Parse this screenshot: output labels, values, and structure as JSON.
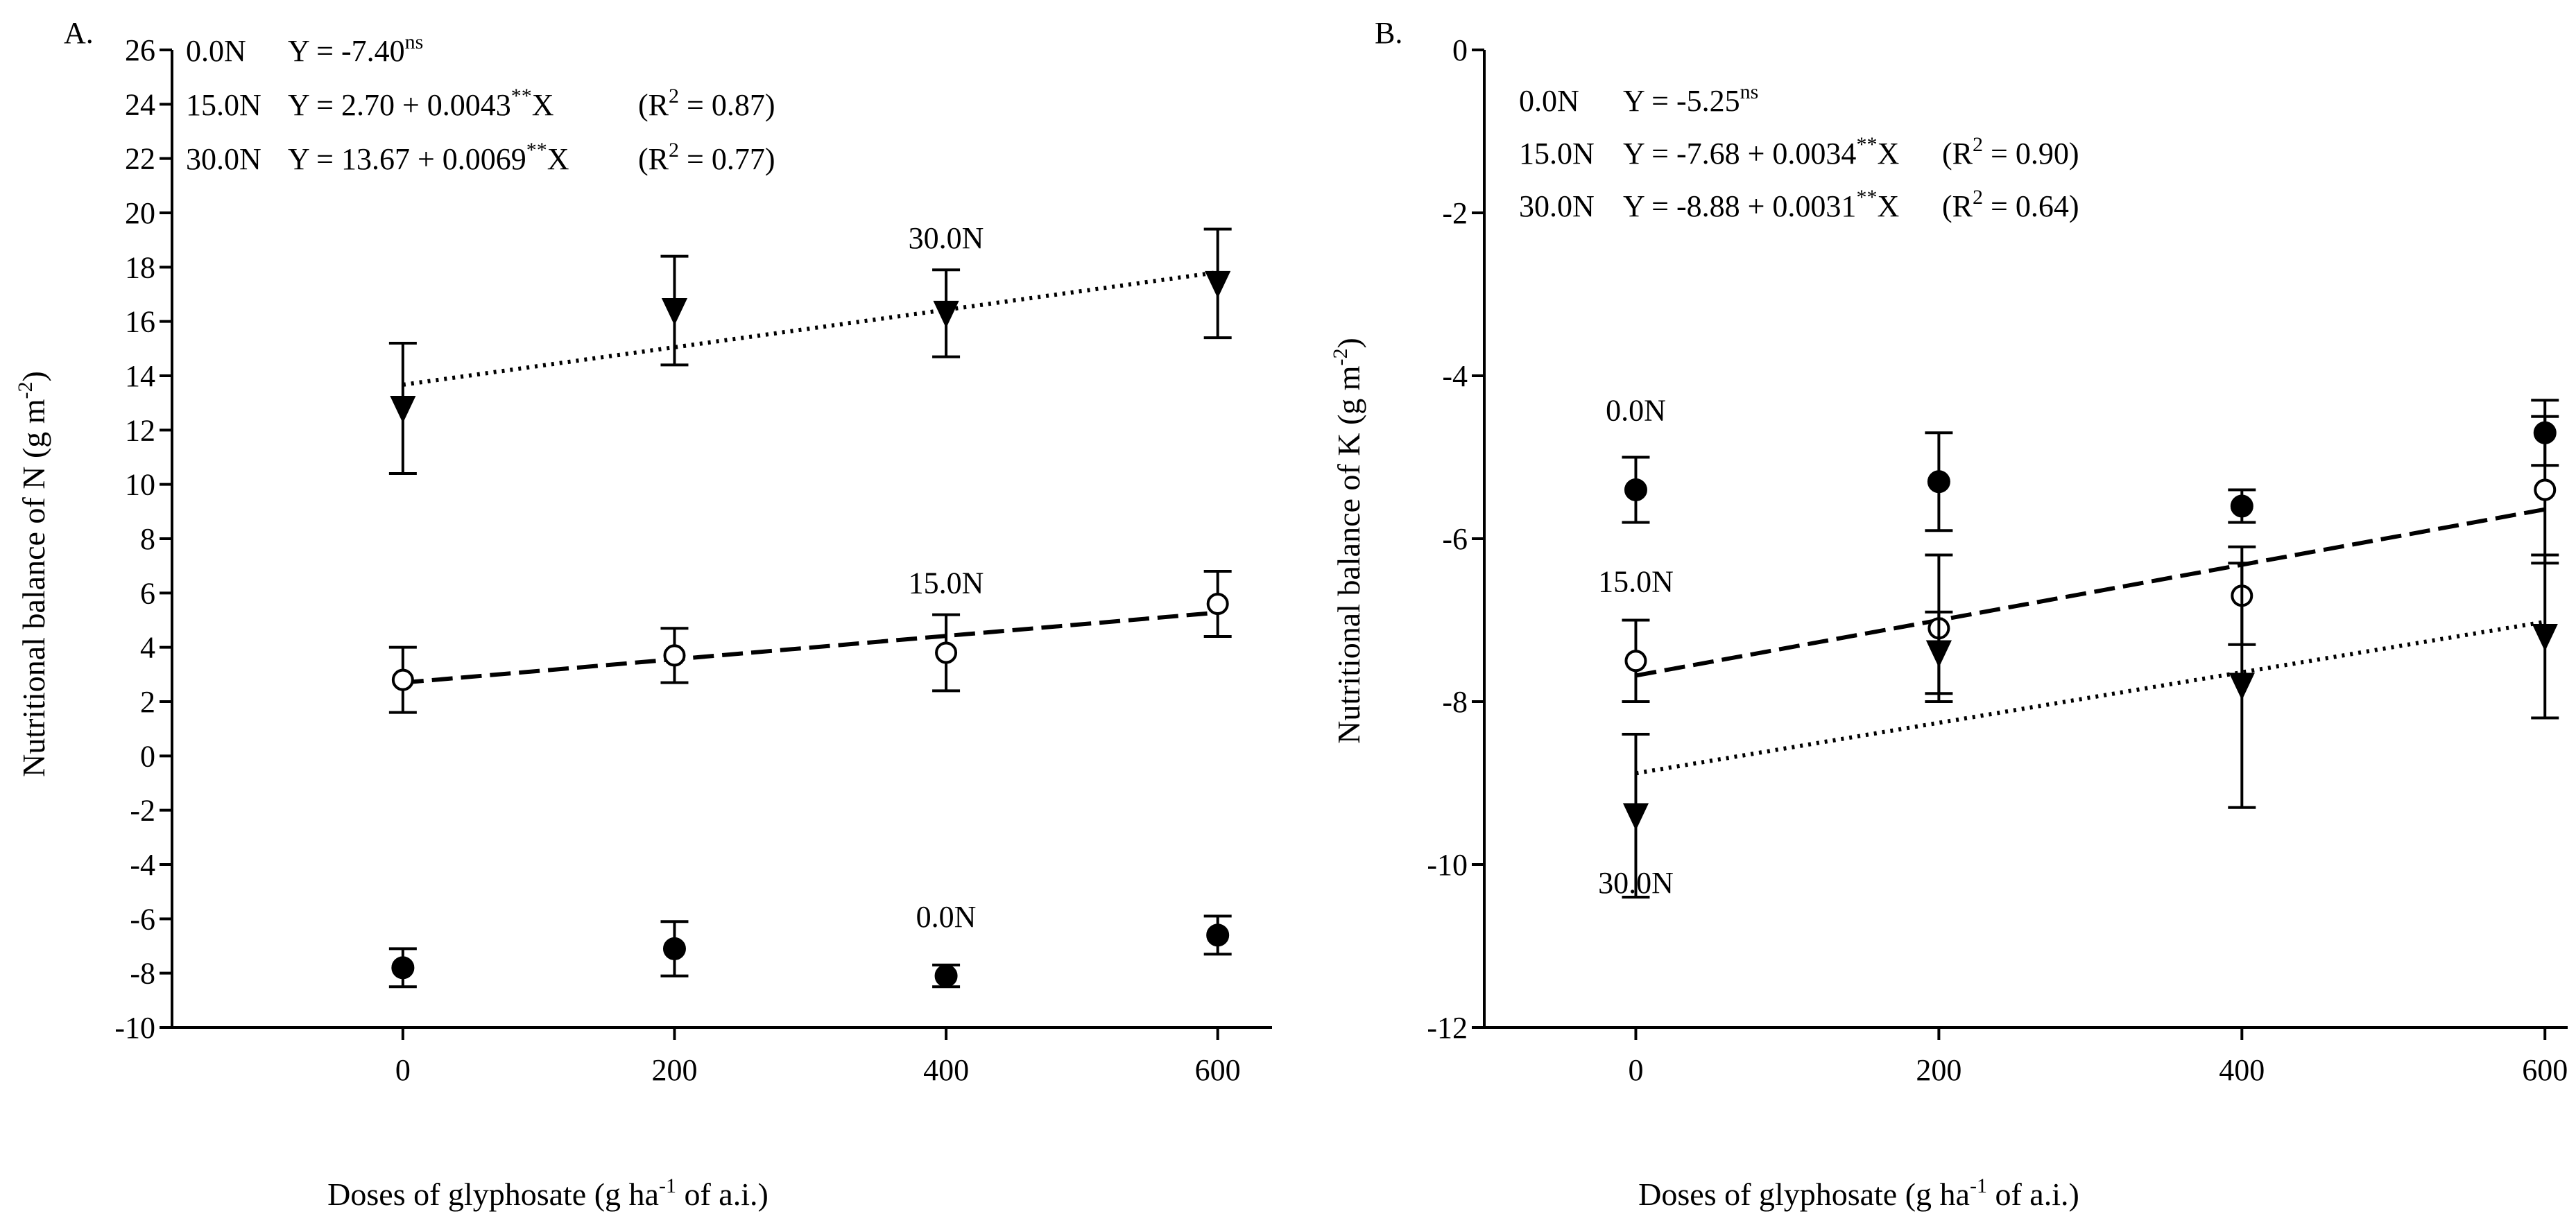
{
  "xlabel_main": "Doses of glyphosate (g ha",
  "xlabel_sup": "-1",
  "xlabel_tail": " of a.i.)",
  "panels": [
    {
      "letter": "A.",
      "ylabel_main": "Nutritional balance of N (g m",
      "ylabel_sup": "-2",
      "ylabel_tail": ")",
      "equations": [
        {
          "label": "0.0N",
          "pre": "Y = -7.40",
          "sup": "ns",
          "post": "",
          "r2_pre": "",
          "r2_sup": "",
          "r2_post": ""
        },
        {
          "label": "15.0N",
          "pre": "Y = 2.70 + 0.0043",
          "sup": "**",
          "post": "X",
          "r2_pre": "(R",
          "r2_sup": "2",
          "r2_post": " = 0.87)"
        },
        {
          "label": "30.0N",
          "pre": "Y = 13.67 + 0.0069",
          "sup": "**",
          "post": "X",
          "r2_pre": "(R",
          "r2_sup": "2",
          "r2_post": " = 0.77)"
        }
      ]
    },
    {
      "letter": "B.",
      "ylabel_main": "Nutritional balance of K (g m",
      "ylabel_sup": "-2",
      "ylabel_tail": ")",
      "equations": [
        {
          "label": "0.0N",
          "pre": "Y = -5.25",
          "sup": "ns",
          "post": "",
          "r2_pre": "",
          "r2_sup": "",
          "r2_post": ""
        },
        {
          "label": "15.0N",
          "pre": "Y = -7.68 + 0.0034",
          "sup": "**",
          "post": "X",
          "r2_pre": "(R",
          "r2_sup": "2",
          "r2_post": " = 0.90)"
        },
        {
          "label": "30.0N",
          "pre": "Y = -8.88 + 0.0031",
          "sup": "**",
          "post": "X",
          "r2_pre": "(R",
          "r2_sup": "2",
          "r2_post": " = 0.64)"
        }
      ]
    }
  ],
  "colors": {
    "ink": "#000000",
    "open_fill": "#ffffff"
  },
  "chart_data": [
    {
      "type": "scatter",
      "title": "",
      "xlabel": "Doses of glyphosate (g ha-1 of a.i.)",
      "ylabel": "Nutritional balance of N (g m-2)",
      "x": [
        0,
        200,
        400,
        600
      ],
      "xticks": [
        0,
        200,
        400,
        600
      ],
      "xlim": [
        -170,
        640
      ],
      "ylim": [
        -10,
        26
      ],
      "yticks": [
        -10,
        -8,
        -6,
        -4,
        -2,
        0,
        2,
        4,
        6,
        8,
        10,
        12,
        14,
        16,
        18,
        20,
        22,
        24,
        26
      ],
      "grid": false,
      "series": [
        {
          "name": "0.0N",
          "marker": "filled-circle",
          "values": [
            -7.8,
            -7.1,
            -8.1,
            -6.6
          ],
          "err_low": [
            0.7,
            1.0,
            0.4,
            0.7
          ],
          "err_high": [
            0.7,
            1.0,
            0.4,
            0.7
          ],
          "trend": null,
          "label": "0.0N",
          "label_at": [
            400,
            -6.3
          ]
        },
        {
          "name": "15.0N",
          "marker": "open-circle",
          "values": [
            2.8,
            3.7,
            3.8,
            5.6
          ],
          "err_low": [
            1.2,
            1.0,
            1.4,
            1.2
          ],
          "err_high": [
            1.2,
            1.0,
            1.4,
            1.2
          ],
          "trend": {
            "intercept": 2.7,
            "slope": 0.0043,
            "style": "dashed"
          },
          "label": "15.0N",
          "label_at": [
            400,
            6.0
          ]
        },
        {
          "name": "30.0N",
          "marker": "filled-triangle-down",
          "values": [
            12.8,
            16.4,
            16.3,
            17.4
          ],
          "err_low": [
            2.4,
            2.0,
            1.6,
            2.0
          ],
          "err_high": [
            2.4,
            2.0,
            1.6,
            2.0
          ],
          "trend": {
            "intercept": 13.67,
            "slope": 0.0069,
            "style": "dotted"
          },
          "label": "30.0N",
          "label_at": [
            400,
            18.7
          ]
        }
      ]
    },
    {
      "type": "scatter",
      "title": "",
      "xlabel": "Doses of glyphosate (g ha-1 of a.i.)",
      "ylabel": "Nutritional balance of K (g m-2)",
      "x": [
        0,
        200,
        400,
        600
      ],
      "xticks": [
        0,
        200,
        400,
        600
      ],
      "xlim": [
        -100,
        615
      ],
      "ylim": [
        -12,
        0
      ],
      "yticks": [
        -12,
        -10,
        -8,
        -6,
        -4,
        -2,
        0
      ],
      "grid": false,
      "series": [
        {
          "name": "0.0N",
          "marker": "filled-circle",
          "values": [
            -5.4,
            -5.3,
            -5.6,
            -4.7
          ],
          "err_low": [
            0.4,
            0.6,
            0.2,
            0.4
          ],
          "err_high": [
            0.4,
            0.6,
            0.2,
            0.4
          ],
          "trend": null,
          "label": "0.0N",
          "label_at": [
            0,
            -4.55
          ]
        },
        {
          "name": "15.0N",
          "marker": "open-circle",
          "values": [
            -7.5,
            -7.1,
            -6.7,
            -5.4
          ],
          "err_low": [
            0.5,
            0.9,
            0.6,
            0.9
          ],
          "err_high": [
            0.5,
            0.9,
            0.6,
            0.9
          ],
          "trend": {
            "intercept": -7.68,
            "slope": 0.0034,
            "style": "dashed"
          },
          "label": "15.0N",
          "label_at": [
            0,
            -6.65
          ]
        },
        {
          "name": "30.0N",
          "marker": "filled-triangle-down",
          "values": [
            -9.4,
            -7.4,
            -7.8,
            -7.2
          ],
          "err_low": [
            1.0,
            0.5,
            1.5,
            1.0
          ],
          "err_high": [
            1.0,
            0.5,
            1.5,
            1.0
          ],
          "trend": {
            "intercept": -8.88,
            "slope": 0.0031,
            "style": "dotted"
          },
          "label": "30.0N",
          "label_at": [
            0,
            -10.35
          ]
        }
      ]
    }
  ]
}
